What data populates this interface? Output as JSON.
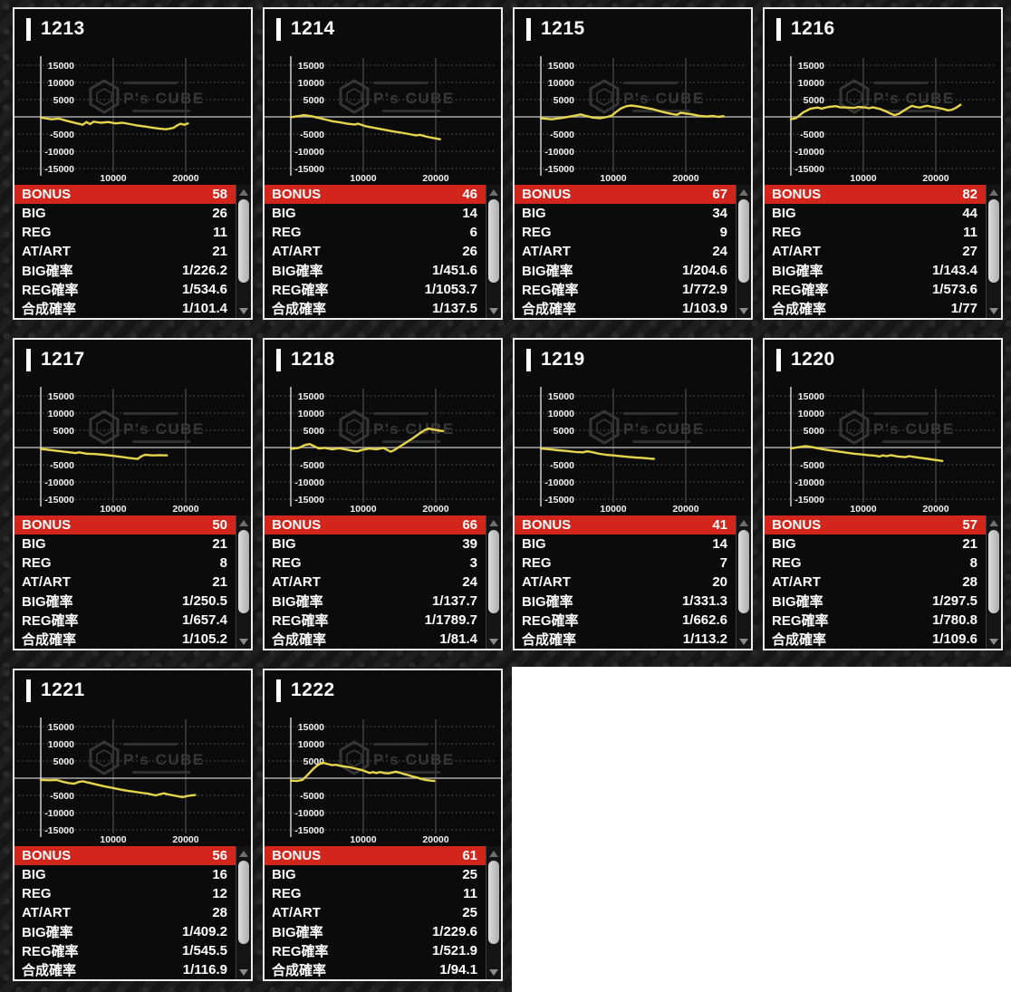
{
  "watermark": {
    "logo": "hexagon-cube-icon",
    "text": "P's CUBE"
  },
  "chart": {
    "type": "line",
    "x_ticks": [
      {
        "value": 10000,
        "label": "10000"
      },
      {
        "value": 20000,
        "label": "20000"
      }
    ],
    "y_ticks": [
      {
        "value": 15000,
        "label": "15000"
      },
      {
        "value": 10000,
        "label": "10000"
      },
      {
        "value": 5000,
        "label": "5000"
      },
      {
        "value": -5000,
        "label": "-5000"
      },
      {
        "value": -10000,
        "label": "-10000"
      },
      {
        "value": -15000,
        "label": "-15000"
      }
    ],
    "ylim": [
      -17500,
      18500
    ],
    "xlim": [
      0,
      29000
    ],
    "grid": "dotted-horizontal, solid-vertical, solid-zero-line"
  },
  "stats_labels": [
    "BONUS",
    "BIG",
    "REG",
    "AT/ART",
    "BIG確率",
    "REG確率",
    "合成確率"
  ],
  "layout_rows": [
    4,
    4,
    2
  ],
  "colors": {
    "accent_red": "#d2251b",
    "graph_line": "#e6d44b",
    "panel_border": "#ededed",
    "panel_bg": "#0b0b0b",
    "watermark_gray": "#3a3a3a"
  },
  "machines": [
    {
      "id": "1213",
      "values": [
        "58",
        "26",
        "11",
        "21",
        "1/226.2",
        "1/534.6",
        "1/101.4"
      ],
      "graph": [
        [
          0,
          -200
        ],
        [
          1500,
          -700
        ],
        [
          2500,
          -500
        ],
        [
          3500,
          -1100
        ],
        [
          4800,
          -1800
        ],
        [
          5800,
          -2300
        ],
        [
          6300,
          -1500
        ],
        [
          6800,
          -2100
        ],
        [
          7300,
          -1400
        ],
        [
          8300,
          -1700
        ],
        [
          9300,
          -1500
        ],
        [
          10300,
          -1900
        ],
        [
          11300,
          -1700
        ],
        [
          12300,
          -2100
        ],
        [
          13300,
          -2500
        ],
        [
          14300,
          -2800
        ],
        [
          15300,
          -3100
        ],
        [
          16300,
          -3400
        ],
        [
          17300,
          -3600
        ],
        [
          18300,
          -3200
        ],
        [
          18800,
          -2500
        ],
        [
          19300,
          -2000
        ],
        [
          19800,
          -2300
        ],
        [
          20300,
          -1900
        ]
      ]
    },
    {
      "id": "1214",
      "values": [
        "46",
        "14",
        "6",
        "26",
        "1/451.6",
        "1/1053.7",
        "1/137.5"
      ],
      "graph": [
        [
          0,
          -100
        ],
        [
          1200,
          300
        ],
        [
          1800,
          500
        ],
        [
          2800,
          200
        ],
        [
          3800,
          -300
        ],
        [
          4800,
          -800
        ],
        [
          5800,
          -1300
        ],
        [
          6800,
          -1600
        ],
        [
          7800,
          -2000
        ],
        [
          8800,
          -2200
        ],
        [
          9300,
          -2000
        ],
        [
          10300,
          -2700
        ],
        [
          11300,
          -3100
        ],
        [
          12300,
          -3500
        ],
        [
          13300,
          -3900
        ],
        [
          14300,
          -4300
        ],
        [
          15300,
          -4600
        ],
        [
          16300,
          -5000
        ],
        [
          17300,
          -5400
        ],
        [
          17800,
          -5200
        ],
        [
          18800,
          -5800
        ],
        [
          19800,
          -6200
        ],
        [
          20600,
          -6500
        ]
      ]
    },
    {
      "id": "1215",
      "values": [
        "67",
        "34",
        "9",
        "24",
        "1/204.6",
        "1/772.9",
        "1/103.9"
      ],
      "graph": [
        [
          0,
          -400
        ],
        [
          1500,
          -700
        ],
        [
          3000,
          -300
        ],
        [
          4500,
          300
        ],
        [
          5500,
          700
        ],
        [
          6200,
          300
        ],
        [
          7200,
          -200
        ],
        [
          8200,
          -400
        ],
        [
          9200,
          0
        ],
        [
          9800,
          400
        ],
        [
          10300,
          1300
        ],
        [
          11000,
          2400
        ],
        [
          11800,
          3100
        ],
        [
          12500,
          3300
        ],
        [
          13500,
          3000
        ],
        [
          14500,
          2600
        ],
        [
          15500,
          2200
        ],
        [
          16500,
          1600
        ],
        [
          17500,
          1100
        ],
        [
          18200,
          800
        ],
        [
          18800,
          600
        ],
        [
          19300,
          1200
        ],
        [
          19900,
          1000
        ],
        [
          20900,
          700
        ],
        [
          21900,
          300
        ],
        [
          22900,
          100
        ],
        [
          23700,
          300
        ],
        [
          24500,
          0
        ],
        [
          25200,
          200
        ]
      ]
    },
    {
      "id": "1216",
      "values": [
        "82",
        "44",
        "11",
        "27",
        "1/143.4",
        "1/573.6",
        "1/77"
      ],
      "graph": [
        [
          0,
          -700
        ],
        [
          700,
          -400
        ],
        [
          1700,
          1300
        ],
        [
          2700,
          2400
        ],
        [
          3700,
          2700
        ],
        [
          4200,
          2400
        ],
        [
          5200,
          2900
        ],
        [
          6200,
          3100
        ],
        [
          6800,
          2800
        ],
        [
          7800,
          2700
        ],
        [
          8800,
          2600
        ],
        [
          9300,
          2900
        ],
        [
          10300,
          2700
        ],
        [
          10800,
          2500
        ],
        [
          11300,
          2800
        ],
        [
          12300,
          2300
        ],
        [
          13000,
          1700
        ],
        [
          13700,
          1000
        ],
        [
          14300,
          500
        ],
        [
          14900,
          900
        ],
        [
          15500,
          1700
        ],
        [
          16100,
          2500
        ],
        [
          16700,
          3200
        ],
        [
          17200,
          2900
        ],
        [
          17800,
          2700
        ],
        [
          18300,
          3000
        ],
        [
          18800,
          3200
        ],
        [
          19500,
          2900
        ],
        [
          20300,
          2600
        ],
        [
          21000,
          2300
        ],
        [
          21700,
          1900
        ],
        [
          22300,
          2100
        ],
        [
          22900,
          2800
        ],
        [
          23400,
          3500
        ]
      ]
    },
    {
      "id": "1217",
      "values": [
        "50",
        "21",
        "8",
        "21",
        "1/250.5",
        "1/657.4",
        "1/105.2"
      ],
      "graph": [
        [
          0,
          -400
        ],
        [
          1200,
          -700
        ],
        [
          2400,
          -1000
        ],
        [
          3600,
          -1300
        ],
        [
          4800,
          -1600
        ],
        [
          5300,
          -1400
        ],
        [
          6300,
          -1800
        ],
        [
          7500,
          -1900
        ],
        [
          8700,
          -2100
        ],
        [
          9900,
          -2400
        ],
        [
          11100,
          -2700
        ],
        [
          12100,
          -3000
        ],
        [
          12900,
          -3200
        ],
        [
          13400,
          -3300
        ],
        [
          13900,
          -2500
        ],
        [
          14400,
          -2100
        ],
        [
          15400,
          -2300
        ],
        [
          16400,
          -2200
        ],
        [
          17400,
          -2300
        ]
      ]
    },
    {
      "id": "1218",
      "values": [
        "66",
        "39",
        "3",
        "24",
        "1/137.7",
        "1/1789.7",
        "1/81.4"
      ],
      "graph": [
        [
          0,
          -400
        ],
        [
          1100,
          -100
        ],
        [
          1900,
          700
        ],
        [
          2600,
          1000
        ],
        [
          3200,
          400
        ],
        [
          3900,
          -300
        ],
        [
          4700,
          -100
        ],
        [
          5700,
          -500
        ],
        [
          6700,
          -200
        ],
        [
          7700,
          -600
        ],
        [
          8700,
          -1000
        ],
        [
          9200,
          -1100
        ],
        [
          9800,
          -700
        ],
        [
          10800,
          -300
        ],
        [
          11800,
          -500
        ],
        [
          12800,
          -100
        ],
        [
          13300,
          -700
        ],
        [
          13800,
          -1200
        ],
        [
          14300,
          -700
        ],
        [
          14900,
          100
        ],
        [
          15500,
          900
        ],
        [
          16100,
          1700
        ],
        [
          16700,
          2500
        ],
        [
          17300,
          3400
        ],
        [
          17900,
          4300
        ],
        [
          18500,
          5100
        ],
        [
          19000,
          5500
        ],
        [
          19500,
          5300
        ],
        [
          20200,
          5000
        ],
        [
          21000,
          4800
        ]
      ]
    },
    {
      "id": "1219",
      "values": [
        "41",
        "14",
        "7",
        "20",
        "1/331.3",
        "1/662.6",
        "1/113.2"
      ],
      "graph": [
        [
          0,
          -300
        ],
        [
          1200,
          -500
        ],
        [
          2400,
          -800
        ],
        [
          3600,
          -1000
        ],
        [
          4800,
          -1300
        ],
        [
          5800,
          -1400
        ],
        [
          6400,
          -1100
        ],
        [
          7000,
          -1300
        ],
        [
          8000,
          -1800
        ],
        [
          9000,
          -2100
        ],
        [
          10000,
          -2300
        ],
        [
          11000,
          -2500
        ],
        [
          12000,
          -2700
        ],
        [
          13000,
          -2900
        ],
        [
          14000,
          -3000
        ],
        [
          15000,
          -3200
        ],
        [
          15600,
          -3300
        ]
      ]
    },
    {
      "id": "1220",
      "values": [
        "57",
        "21",
        "8",
        "28",
        "1/297.5",
        "1/780.8",
        "1/109.6"
      ],
      "graph": [
        [
          0,
          -300
        ],
        [
          1100,
          100
        ],
        [
          2100,
          400
        ],
        [
          2700,
          200
        ],
        [
          3700,
          -200
        ],
        [
          4700,
          -600
        ],
        [
          5700,
          -900
        ],
        [
          6700,
          -1200
        ],
        [
          7700,
          -1500
        ],
        [
          8700,
          -1800
        ],
        [
          9700,
          -2000
        ],
        [
          10700,
          -2200
        ],
        [
          11700,
          -2400
        ],
        [
          12200,
          -2600
        ],
        [
          12700,
          -2300
        ],
        [
          13200,
          -2500
        ],
        [
          13800,
          -2200
        ],
        [
          14800,
          -2600
        ],
        [
          15800,
          -2800
        ],
        [
          16300,
          -2500
        ],
        [
          16900,
          -2700
        ],
        [
          17900,
          -3000
        ],
        [
          18900,
          -3300
        ],
        [
          19900,
          -3600
        ],
        [
          20900,
          -3900
        ]
      ]
    },
    {
      "id": "1221",
      "values": [
        "56",
        "16",
        "12",
        "28",
        "1/409.2",
        "1/545.5",
        "1/116.9"
      ],
      "graph": [
        [
          0,
          -500
        ],
        [
          1200,
          -600
        ],
        [
          2200,
          -500
        ],
        [
          2800,
          -900
        ],
        [
          3800,
          -1400
        ],
        [
          4600,
          -1600
        ],
        [
          5200,
          -1100
        ],
        [
          5800,
          -900
        ],
        [
          6800,
          -1400
        ],
        [
          7800,
          -1900
        ],
        [
          8800,
          -2400
        ],
        [
          9800,
          -2800
        ],
        [
          10800,
          -3200
        ],
        [
          11800,
          -3600
        ],
        [
          12800,
          -3900
        ],
        [
          13800,
          -4200
        ],
        [
          14800,
          -4500
        ],
        [
          15400,
          -4800
        ],
        [
          15900,
          -5000
        ],
        [
          16500,
          -4600
        ],
        [
          17000,
          -4400
        ],
        [
          17600,
          -4700
        ],
        [
          18300,
          -5000
        ],
        [
          19000,
          -5300
        ],
        [
          19600,
          -5500
        ],
        [
          20100,
          -5200
        ],
        [
          20700,
          -5000
        ],
        [
          21300,
          -4900
        ]
      ]
    },
    {
      "id": "1222",
      "values": [
        "61",
        "25",
        "11",
        "25",
        "1/229.6",
        "1/521.9",
        "1/94.1"
      ],
      "graph": [
        [
          0,
          -700
        ],
        [
          900,
          -800
        ],
        [
          1600,
          -500
        ],
        [
          2100,
          500
        ],
        [
          2600,
          1600
        ],
        [
          3100,
          2700
        ],
        [
          3600,
          3600
        ],
        [
          4100,
          4300
        ],
        [
          4400,
          4500
        ],
        [
          5100,
          4100
        ],
        [
          5700,
          3800
        ],
        [
          6200,
          3900
        ],
        [
          6800,
          3600
        ],
        [
          7400,
          3400
        ],
        [
          8100,
          3200
        ],
        [
          8700,
          2900
        ],
        [
          9300,
          2600
        ],
        [
          9900,
          2300
        ],
        [
          10400,
          1900
        ],
        [
          10900,
          1500
        ],
        [
          11300,
          1800
        ],
        [
          11800,
          1500
        ],
        [
          12300,
          1800
        ],
        [
          12900,
          1500
        ],
        [
          13500,
          1400
        ],
        [
          14100,
          1700
        ],
        [
          14500,
          1900
        ],
        [
          15000,
          1600
        ],
        [
          15600,
          1200
        ],
        [
          16200,
          900
        ],
        [
          16800,
          500
        ],
        [
          17400,
          200
        ],
        [
          18000,
          -200
        ],
        [
          18600,
          -500
        ],
        [
          19300,
          -700
        ],
        [
          19800,
          -800
        ]
      ]
    }
  ]
}
